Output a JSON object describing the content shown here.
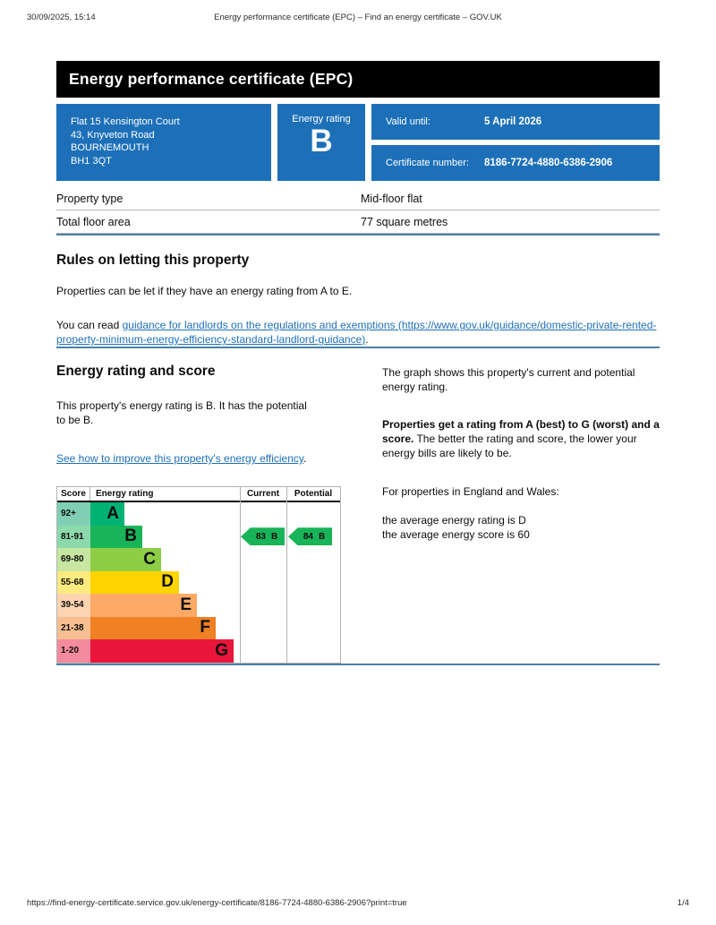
{
  "print": {
    "datetime": "30/09/2025, 15:14",
    "doc_title": "Energy performance certificate (EPC) – Find an energy certificate – GOV.UK",
    "url": "https://find-energy-certificate.service.gov.uk/energy-certificate/8186-7724-4880-6386-2906?print=true",
    "page": "1/4"
  },
  "banner": {
    "title": "Energy performance certificate (EPC)"
  },
  "summary": {
    "address_line1": "Flat 15 Kensington Court",
    "address_line2": "43, Knyveton Road",
    "address_line3": "BOURNEMOUTH",
    "address_line4": "BH1 3QT",
    "energy_rating_label": "Energy rating",
    "energy_rating_value": "B",
    "valid_until_label": "Valid until:",
    "valid_until_value": "5 April 2026",
    "certificate_number_label": "Certificate number:",
    "certificate_number_value": "8186-7724-4880-6386-2906"
  },
  "property": {
    "rows": [
      {
        "label": "Property type",
        "value": "Mid-floor flat"
      },
      {
        "label": "Total floor area",
        "value": "77 square metres"
      }
    ]
  },
  "letting": {
    "heading": "Rules on letting this property",
    "p1": "Properties can be let if they have an energy rating from A to E.",
    "p2_prefix": "You can read ",
    "p2_link": "guidance for landlords on the regulations and exemptions (https://www.gov.uk/guidance/domestic-private-rented-property-minimum-energy-efficiency-standard-landlord-guidance)",
    "p2_suffix": "."
  },
  "rating_section": {
    "heading": "Energy rating and score",
    "p1": "This property's energy rating is B. It has the potential to be B.",
    "improve_link": "See how to improve this property's energy efficiency",
    "improve_suffix": ".",
    "right_p1": "The graph shows this property's current and potential energy rating.",
    "right_p2_bold": "Properties get a rating from A (best) to G (worst) and a score.",
    "right_p2_rest": " The better the rating and score, the lower your energy bills are likely to be.",
    "right_p3": "For properties in England and Wales:",
    "right_p4_line1": "the average energy rating is D",
    "right_p4_line2": "the average energy score is 60"
  },
  "chart_data": {
    "type": "bar",
    "title": "Energy rating and score",
    "columns": [
      "Score",
      "Energy rating",
      "Current",
      "Potential"
    ],
    "bands": [
      {
        "score": "92+",
        "letter": "A",
        "color": "#00b274",
        "score_color": "#80cfb4"
      },
      {
        "score": "81-91",
        "letter": "B",
        "color": "#19b459",
        "score_color": "#8cd9ac"
      },
      {
        "score": "69-80",
        "letter": "C",
        "color": "#8dce46",
        "score_color": "#c6e6a2"
      },
      {
        "score": "55-68",
        "letter": "D",
        "color": "#ffd500",
        "score_color": "#ffea80"
      },
      {
        "score": "39-54",
        "letter": "E",
        "color": "#fcaa65",
        "score_color": "#fdd4b2"
      },
      {
        "score": "21-38",
        "letter": "F",
        "color": "#ef8023",
        "score_color": "#f7bf91"
      },
      {
        "score": "1-20",
        "letter": "G",
        "color": "#e9153b",
        "score_color": "#f48a9d"
      }
    ],
    "current": {
      "score": "83",
      "band": "B",
      "color": "#19b459"
    },
    "potential": {
      "score": "84",
      "band": "B",
      "color": "#19b459"
    }
  },
  "colors": {
    "accent_blue": "#1d70b8",
    "link_blue": "#1d70b8",
    "rule_blue": "#4d7fa5",
    "banner_black": "#000000",
    "border_gray": "#b1b4b6"
  }
}
